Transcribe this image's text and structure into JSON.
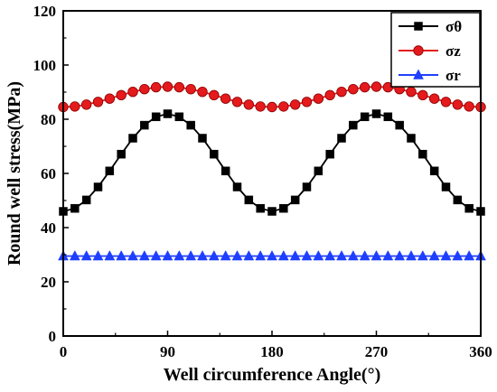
{
  "chart_data": {
    "type": "line",
    "xlabel": "Well circumference Angle(°)",
    "ylabel": "Round well stress(MPa)",
    "xlim": [
      0,
      360
    ],
    "ylim": [
      0,
      120
    ],
    "x_ticks": [
      "0",
      "90",
      "180",
      "270",
      "360"
    ],
    "y_ticks": [
      "0",
      "20",
      "40",
      "60",
      "80",
      "100",
      "120"
    ],
    "grid": false,
    "legend_position": "top-right",
    "x": [
      0,
      10,
      20,
      30,
      40,
      50,
      60,
      70,
      80,
      90,
      100,
      110,
      120,
      130,
      140,
      150,
      160,
      170,
      180,
      190,
      200,
      210,
      220,
      230,
      240,
      250,
      260,
      270,
      280,
      290,
      300,
      310,
      320,
      330,
      340,
      350,
      360
    ],
    "series": [
      {
        "name": "σθ",
        "marker": "square",
        "color": "#000000",
        "values": [
          46.0,
          47.1,
          50.2,
          55.0,
          60.9,
          67.1,
          73.0,
          77.8,
          80.9,
          82.0,
          80.9,
          77.8,
          73.0,
          67.1,
          60.9,
          55.0,
          50.2,
          47.1,
          46.0,
          47.1,
          50.2,
          55.0,
          60.9,
          67.1,
          73.0,
          77.8,
          80.9,
          82.0,
          80.9,
          77.8,
          73.0,
          67.1,
          60.9,
          55.0,
          50.2,
          47.1,
          46.0
        ]
      },
      {
        "name": "σz",
        "marker": "circle",
        "color": "#e41a1c",
        "values": [
          84.5,
          84.7,
          85.4,
          86.4,
          87.6,
          88.9,
          90.1,
          91.1,
          91.8,
          92.0,
          91.8,
          91.1,
          90.1,
          88.9,
          87.6,
          86.4,
          85.4,
          84.7,
          84.5,
          84.7,
          85.4,
          86.4,
          87.6,
          88.9,
          90.1,
          91.1,
          91.8,
          92.0,
          91.8,
          91.1,
          90.1,
          88.9,
          87.6,
          86.4,
          85.4,
          84.7,
          84.5
        ]
      },
      {
        "name": "σr",
        "marker": "triangle",
        "color": "#1f3fff",
        "values": [
          29.5,
          29.5,
          29.5,
          29.5,
          29.5,
          29.5,
          29.5,
          29.5,
          29.5,
          29.5,
          29.5,
          29.5,
          29.5,
          29.5,
          29.5,
          29.5,
          29.5,
          29.5,
          29.5,
          29.5,
          29.5,
          29.5,
          29.5,
          29.5,
          29.5,
          29.5,
          29.5,
          29.5,
          29.5,
          29.5,
          29.5,
          29.5,
          29.5,
          29.5,
          29.5,
          29.5,
          29.5
        ]
      }
    ]
  }
}
